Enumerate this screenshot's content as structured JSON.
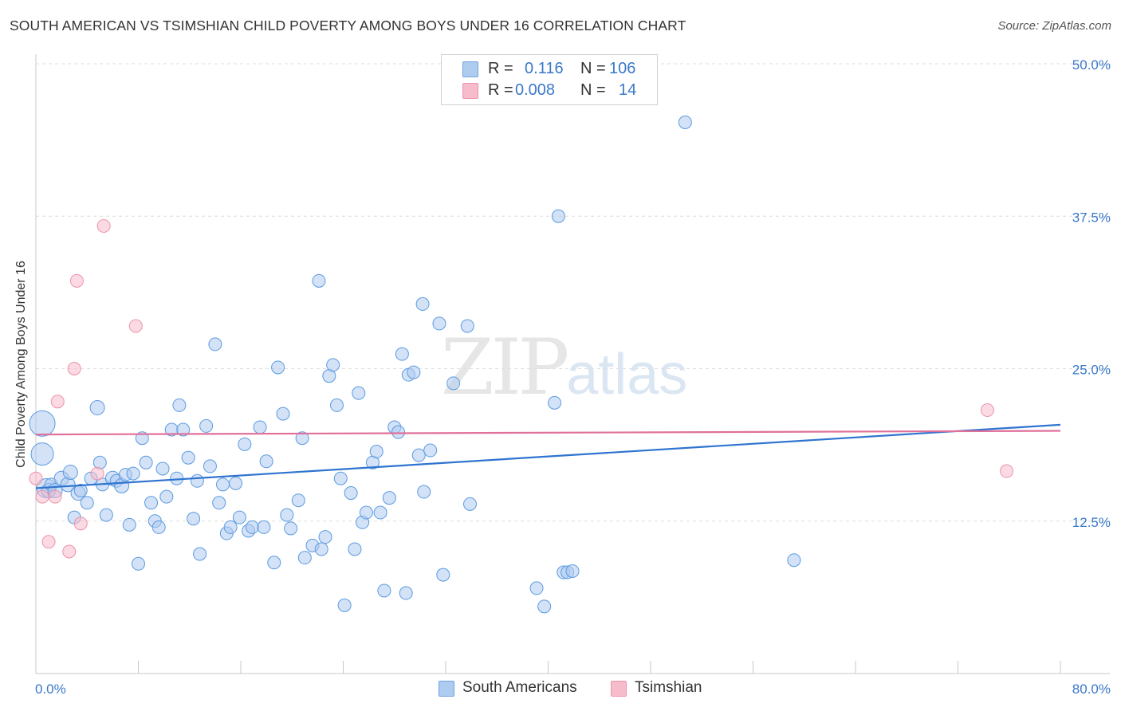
{
  "header": {
    "title": "SOUTH AMERICAN VS TSIMSHIAN CHILD POVERTY AMONG BOYS UNDER 16 CORRELATION CHART",
    "source": "Source: ZipAtlas.com"
  },
  "watermark": {
    "zip": "ZIP",
    "atlas": "atlas"
  },
  "legend": {
    "rows": [
      {
        "r_label": "R =",
        "r_value": "0.116",
        "n_label": "N =",
        "n_value": "106",
        "color": "#aecbf0"
      },
      {
        "r_label": "R =",
        "r_value": "0.008",
        "n_label": "N =",
        "n_value": "14",
        "color": "#f7bccc"
      }
    ]
  },
  "bottom_legend": [
    {
      "label": "South Americans",
      "color": "#aecbf0"
    },
    {
      "label": "Tsimshian",
      "color": "#f7bccc"
    }
  ],
  "chart_data": {
    "type": "scatter",
    "title": "SOUTH AMERICAN VS TSIMSHIAN CHILD POVERTY AMONG BOYS UNDER 16 CORRELATION CHART",
    "xlabel": "",
    "ylabel": "Child Poverty Among Boys Under 16",
    "xlim": [
      0,
      80
    ],
    "ylim": [
      0,
      50
    ],
    "x_tick_labels": [
      "0.0%",
      "80.0%"
    ],
    "y_ticks": [
      12.5,
      25.0,
      37.5,
      50.0
    ],
    "y_tick_labels": [
      "12.5%",
      "25.0%",
      "37.5%",
      "50.0%"
    ],
    "grid": true,
    "legend_position": "top-center",
    "series": [
      {
        "name": "South Americans",
        "color": "#5b9be0",
        "fill": "#aecbf0",
        "trend": {
          "x0": 0,
          "y0": 15.2,
          "x1": 80,
          "y1": 20.4,
          "color": "#2f74d0"
        },
        "points": [
          [
            0.5,
            20.5,
            16
          ],
          [
            0.5,
            18,
            14
          ],
          [
            0.8,
            15.2,
            12
          ],
          [
            1,
            15,
            9
          ],
          [
            1.2,
            15.5,
            8
          ],
          [
            1.5,
            15,
            9
          ],
          [
            2,
            16,
            9
          ],
          [
            2.5,
            15.5,
            9
          ],
          [
            2.7,
            16.5,
            9
          ],
          [
            3.0,
            12.8,
            8
          ],
          [
            3.3,
            14.8,
            9
          ],
          [
            3.5,
            15,
            8
          ],
          [
            4,
            14,
            8
          ],
          [
            4.3,
            16,
            8
          ],
          [
            4.8,
            21.8,
            9
          ],
          [
            5,
            17.3,
            8
          ],
          [
            5.2,
            15.5,
            8
          ],
          [
            5.5,
            13,
            8
          ],
          [
            6,
            16,
            9
          ],
          [
            6.3,
            15.8,
            8
          ],
          [
            6.7,
            15.4,
            9
          ],
          [
            7,
            16.3,
            8
          ],
          [
            7.3,
            12.2,
            8
          ],
          [
            7.6,
            16.4,
            8
          ],
          [
            8,
            9,
            8
          ],
          [
            8.3,
            19.3,
            8
          ],
          [
            8.6,
            17.3,
            8
          ],
          [
            9,
            14,
            8
          ],
          [
            9.3,
            12.5,
            8
          ],
          [
            9.6,
            12,
            8
          ],
          [
            9.9,
            16.8,
            8
          ],
          [
            10.2,
            14.5,
            8
          ],
          [
            10.6,
            20,
            8
          ],
          [
            11,
            16,
            8
          ],
          [
            11.2,
            22,
            8
          ],
          [
            11.5,
            20,
            8
          ],
          [
            11.9,
            17.7,
            8
          ],
          [
            12.3,
            12.7,
            8
          ],
          [
            12.6,
            15.8,
            8
          ],
          [
            12.8,
            9.8,
            8
          ],
          [
            13.3,
            20.3,
            8
          ],
          [
            14,
            27,
            8
          ],
          [
            14.3,
            14,
            8
          ],
          [
            14.6,
            15.5,
            8
          ],
          [
            14.9,
            11.5,
            8
          ],
          [
            15.2,
            12,
            8
          ],
          [
            15.6,
            15.6,
            8
          ],
          [
            15.9,
            12.8,
            8
          ],
          [
            16.3,
            18.8,
            8
          ],
          [
            16.6,
            11.7,
            8
          ],
          [
            16.9,
            12,
            8
          ],
          [
            17.5,
            20.2,
            8
          ],
          [
            17.8,
            12.0,
            8
          ],
          [
            18.0,
            17.4,
            8
          ],
          [
            18.6,
            9.1,
            8
          ],
          [
            18.9,
            25.1,
            8
          ],
          [
            19.3,
            21.3,
            8
          ],
          [
            19.6,
            13,
            8
          ],
          [
            19.9,
            11.9,
            8
          ],
          [
            20.5,
            14.2,
            8
          ],
          [
            20.8,
            19.3,
            8
          ],
          [
            21,
            9.5,
            8
          ],
          [
            21.6,
            10.5,
            8
          ],
          [
            22.1,
            32.2,
            8
          ],
          [
            22.3,
            10.2,
            8
          ],
          [
            22.6,
            11.2,
            8
          ],
          [
            22.9,
            24.4,
            8
          ],
          [
            23.2,
            25.3,
            8
          ],
          [
            23.5,
            22,
            8
          ],
          [
            23.8,
            16,
            8
          ],
          [
            24.1,
            5.6,
            8
          ],
          [
            24.6,
            14.8,
            8
          ],
          [
            24.9,
            10.2,
            8
          ],
          [
            25.2,
            23,
            8
          ],
          [
            25.5,
            12.4,
            8
          ],
          [
            25.8,
            13.2,
            8
          ],
          [
            26.3,
            17.3,
            8
          ],
          [
            26.6,
            18.2,
            8
          ],
          [
            26.9,
            13.2,
            8
          ],
          [
            27.2,
            6.8,
            8
          ],
          [
            27.6,
            14.4,
            8
          ],
          [
            28.0,
            20.2,
            8
          ],
          [
            28.3,
            19.8,
            8
          ],
          [
            28.6,
            26.2,
            8
          ],
          [
            28.9,
            6.6,
            8
          ],
          [
            29.1,
            24.5,
            8
          ],
          [
            29.5,
            24.7,
            8
          ],
          [
            30.2,
            30.3,
            8
          ],
          [
            29.9,
            17.9,
            8
          ],
          [
            30.3,
            14.9,
            8
          ],
          [
            30.8,
            18.3,
            8
          ],
          [
            31.5,
            28.7,
            8
          ],
          [
            31.8,
            8.1,
            8
          ],
          [
            32.6,
            23.8,
            8
          ],
          [
            33.7,
            28.5,
            8
          ],
          [
            33.9,
            13.9,
            8
          ],
          [
            39.1,
            7.0,
            8
          ],
          [
            39.7,
            5.5,
            8
          ],
          [
            40.8,
            37.5,
            8
          ],
          [
            40.5,
            22.2,
            8
          ],
          [
            41.2,
            8.3,
            8
          ],
          [
            41.5,
            8.3,
            8
          ],
          [
            41.9,
            8.4,
            8
          ],
          [
            50.7,
            45.2,
            8
          ],
          [
            59.2,
            9.3,
            8
          ],
          [
            13.6,
            17,
            8
          ]
        ]
      },
      {
        "name": "Tsimshian",
        "color": "#ec93ab",
        "fill": "#f7bccc",
        "trend": {
          "x0": 0,
          "y0": 19.6,
          "x1": 80,
          "y1": 19.9,
          "color": "#e0709a"
        },
        "points": [
          [
            0,
            16,
            8
          ],
          [
            0.5,
            14.5,
            8
          ],
          [
            1,
            10.8,
            8
          ],
          [
            1.5,
            14.5,
            8
          ],
          [
            1.7,
            22.3,
            8
          ],
          [
            2.6,
            10,
            8
          ],
          [
            3,
            25,
            8
          ],
          [
            3.2,
            32.2,
            8
          ],
          [
            3.5,
            12.3,
            8
          ],
          [
            4.8,
            16.4,
            8
          ],
          [
            5.3,
            36.7,
            8
          ],
          [
            7.8,
            28.5,
            8
          ],
          [
            74.3,
            21.6,
            8
          ],
          [
            75.8,
            16.6,
            8
          ]
        ]
      }
    ]
  }
}
